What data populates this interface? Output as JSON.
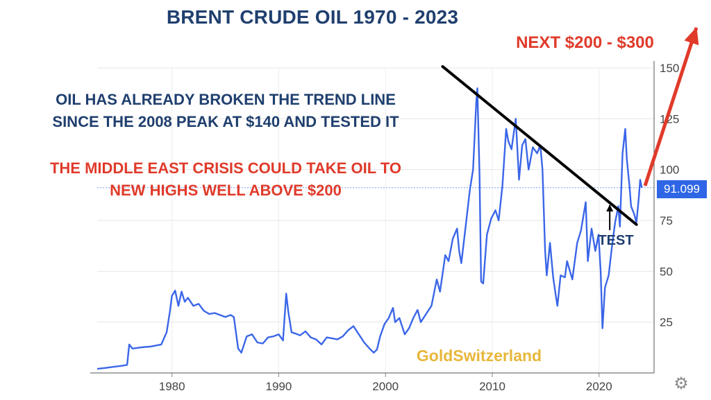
{
  "chart_data": {
    "type": "line",
    "title": "BRENT CRUDE OIL  1970 - 2023",
    "xlim": [
      1973,
      2024.5
    ],
    "ylim": [
      0,
      150
    ],
    "y_ticks": [
      25,
      50,
      75,
      100,
      125,
      150
    ],
    "x_ticks": [
      1980,
      1990,
      2000,
      2010,
      2020
    ],
    "x_tick_labels": [
      "1980",
      "1990",
      "2000",
      "2010",
      "2020"
    ],
    "y_tick_labels": [
      "25",
      "50",
      "75",
      "100",
      "125",
      "150"
    ],
    "grid": true,
    "series": [
      {
        "color": "#3a66e8",
        "points": [
          [
            1973.0,
            2.0
          ],
          [
            1973.8,
            2.5
          ],
          [
            1974.5,
            3.0
          ],
          [
            1975.3,
            3.5
          ],
          [
            1975.8,
            4.0
          ],
          [
            1976.0,
            14.0
          ],
          [
            1976.3,
            12.0
          ],
          [
            1977.0,
            12.5
          ],
          [
            1977.5,
            12.8
          ],
          [
            1978.0,
            13.0
          ],
          [
            1978.5,
            13.5
          ],
          [
            1979.0,
            14.0
          ],
          [
            1979.5,
            20.0
          ],
          [
            1979.8,
            30.0
          ],
          [
            1980.0,
            38.0
          ],
          [
            1980.3,
            40.5
          ],
          [
            1980.6,
            33.0
          ],
          [
            1980.9,
            40.0
          ],
          [
            1981.2,
            35.0
          ],
          [
            1981.5,
            37.0
          ],
          [
            1982.0,
            33.0
          ],
          [
            1982.5,
            34.0
          ],
          [
            1983.0,
            30.5
          ],
          [
            1983.5,
            29.0
          ],
          [
            1984.0,
            29.5
          ],
          [
            1984.5,
            28.5
          ],
          [
            1985.0,
            27.5
          ],
          [
            1985.5,
            28.5
          ],
          [
            1985.8,
            27.5
          ],
          [
            1986.2,
            12.0
          ],
          [
            1986.5,
            10.0
          ],
          [
            1987.0,
            18.0
          ],
          [
            1987.5,
            19.0
          ],
          [
            1988.0,
            15.0
          ],
          [
            1988.5,
            14.5
          ],
          [
            1989.0,
            17.5
          ],
          [
            1989.5,
            18.0
          ],
          [
            1990.0,
            19.0
          ],
          [
            1990.4,
            16.0
          ],
          [
            1990.7,
            39.0
          ],
          [
            1990.9,
            30.0
          ],
          [
            1991.2,
            20.0
          ],
          [
            1991.5,
            19.5
          ],
          [
            1992.0,
            18.5
          ],
          [
            1992.5,
            20.5
          ],
          [
            1993.0,
            17.5
          ],
          [
            1993.5,
            16.5
          ],
          [
            1994.0,
            14.0
          ],
          [
            1994.5,
            17.5
          ],
          [
            1995.0,
            17.0
          ],
          [
            1995.5,
            16.5
          ],
          [
            1996.0,
            18.0
          ],
          [
            1996.5,
            21.0
          ],
          [
            1997.0,
            23.0
          ],
          [
            1997.5,
            19.0
          ],
          [
            1998.0,
            15.0
          ],
          [
            1998.5,
            12.0
          ],
          [
            1998.9,
            10.0
          ],
          [
            1999.2,
            11.5
          ],
          [
            1999.5,
            18.0
          ],
          [
            1999.9,
            24.0
          ],
          [
            2000.3,
            27.0
          ],
          [
            2000.7,
            32.0
          ],
          [
            2000.9,
            25.0
          ],
          [
            2001.3,
            27.0
          ],
          [
            2001.8,
            19.0
          ],
          [
            2002.2,
            22.0
          ],
          [
            2002.6,
            27.0
          ],
          [
            2003.0,
            31.0
          ],
          [
            2003.3,
            25.0
          ],
          [
            2003.8,
            29.0
          ],
          [
            2004.3,
            33.0
          ],
          [
            2004.8,
            46.0
          ],
          [
            2005.1,
            40.0
          ],
          [
            2005.6,
            58.0
          ],
          [
            2005.9,
            55.0
          ],
          [
            2006.3,
            66.0
          ],
          [
            2006.7,
            71.0
          ],
          [
            2006.9,
            60.0
          ],
          [
            2007.1,
            54.0
          ],
          [
            2007.5,
            72.0
          ],
          [
            2007.9,
            90.0
          ],
          [
            2008.2,
            100.0
          ],
          [
            2008.5,
            133.0
          ],
          [
            2008.6,
            140.0
          ],
          [
            2008.8,
            98.0
          ],
          [
            2008.95,
            45.0
          ],
          [
            2009.15,
            44.0
          ],
          [
            2009.5,
            68.0
          ],
          [
            2009.9,
            76.0
          ],
          [
            2010.3,
            80.0
          ],
          [
            2010.6,
            75.0
          ],
          [
            2010.95,
            92.0
          ],
          [
            2011.3,
            120.0
          ],
          [
            2011.5,
            114.0
          ],
          [
            2011.8,
            110.0
          ],
          [
            2012.2,
            125.0
          ],
          [
            2012.5,
            95.0
          ],
          [
            2012.8,
            112.0
          ],
          [
            2013.1,
            115.0
          ],
          [
            2013.4,
            100.0
          ],
          [
            2013.8,
            111.0
          ],
          [
            2014.2,
            108.0
          ],
          [
            2014.5,
            112.0
          ],
          [
            2014.7,
            100.0
          ],
          [
            2014.95,
            60.0
          ],
          [
            2015.1,
            48.0
          ],
          [
            2015.4,
            64.0
          ],
          [
            2015.7,
            47.0
          ],
          [
            2015.95,
            38.0
          ],
          [
            2016.1,
            33.0
          ],
          [
            2016.4,
            48.0
          ],
          [
            2016.8,
            47.0
          ],
          [
            2017.0,
            55.0
          ],
          [
            2017.5,
            46.0
          ],
          [
            2017.95,
            64.0
          ],
          [
            2018.3,
            70.0
          ],
          [
            2018.75,
            84.0
          ],
          [
            2018.95,
            55.0
          ],
          [
            2019.3,
            71.0
          ],
          [
            2019.65,
            60.0
          ],
          [
            2019.95,
            68.0
          ],
          [
            2020.15,
            50.0
          ],
          [
            2020.32,
            22.0
          ],
          [
            2020.55,
            42.0
          ],
          [
            2020.9,
            48.0
          ],
          [
            2021.2,
            62.0
          ],
          [
            2021.5,
            74.0
          ],
          [
            2021.8,
            82.0
          ],
          [
            2021.95,
            72.0
          ],
          [
            2022.2,
            108.0
          ],
          [
            2022.45,
            120.0
          ],
          [
            2022.6,
            105.0
          ],
          [
            2022.85,
            92.0
          ],
          [
            2023.0,
            82.0
          ],
          [
            2023.3,
            78.0
          ],
          [
            2023.5,
            74.0
          ],
          [
            2023.7,
            85.0
          ],
          [
            2023.85,
            95.0
          ],
          [
            2024.0,
            91.099
          ]
        ]
      }
    ],
    "last_value_label": "91.099",
    "annotations": {
      "next_target": "NEXT $200 - $300",
      "note_blue": [
        "OIL HAS ALREADY BROKEN THE TREND LINE",
        "SINCE THE 2008 PEAK AT $140 AND TESTED IT"
      ],
      "note_red": [
        "THE MIDDLE EAST CRISIS COULD TAKE OIL TO",
        "NEW HIGHS WELL ABOVE $200"
      ],
      "test_label": "TEST",
      "brand": "GoldSwitzerland"
    },
    "trend_line": {
      "from": [
        2008.6,
        149
      ],
      "to": [
        2023.5,
        73
      ]
    },
    "projection_arrow": {
      "from": [
        2023.8,
        92
      ],
      "to": [
        2025.7,
        170
      ]
    },
    "test_arrow": {
      "from": [
        2021.0,
        71
      ],
      "to": [
        2021.0,
        82
      ]
    }
  },
  "colors": {
    "line": "#3a66e8",
    "title": "#1f3f6e",
    "accent_red": "#e03a2a",
    "brand": "#e8b73a"
  },
  "icons": {
    "settings": "gear-icon"
  }
}
